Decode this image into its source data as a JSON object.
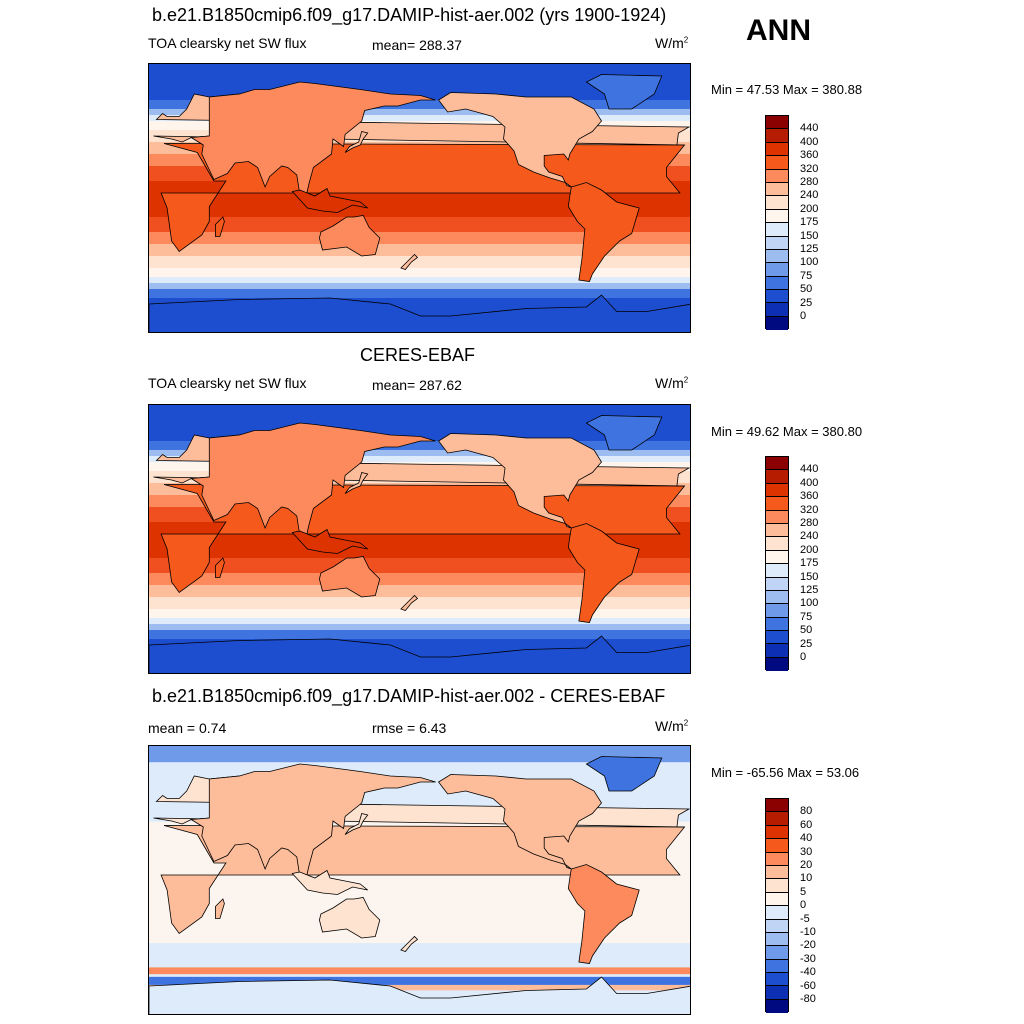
{
  "season": "ANN",
  "panels": [
    {
      "title": "b.e21.B1850cmip6.f09_g17.DAMIP-hist-aer.002 (yrs 1900-1924)",
      "variable": "TOA clearsky net SW flux",
      "stat1": "mean= 288.37",
      "stat2": "",
      "units": "W/m",
      "units_sup": "2",
      "minmax": "Min =  47.53 Max = 380.88",
      "kind": "abs"
    },
    {
      "title": "CERES-EBAF",
      "variable": "TOA clearsky net SW flux",
      "stat1": "mean= 287.62",
      "stat2": "",
      "units": "W/m",
      "units_sup": "2",
      "minmax": "Min =  49.62 Max = 380.80",
      "kind": "abs"
    },
    {
      "title": "b.e21.B1850cmip6.f09_g17.DAMIP-hist-aer.002 - CERES-EBAF",
      "variable": "",
      "stat1": "mean =   0.74",
      "stat2": "rmse =   6.43",
      "units": "W/m",
      "units_sup": "2",
      "minmax": "Min = -65.56 Max =  53.06",
      "kind": "diff"
    }
  ],
  "colorbars": {
    "abs": {
      "labels": [
        "440",
        "400",
        "360",
        "320",
        "280",
        "240",
        "200",
        "175",
        "150",
        "125",
        "100",
        "75",
        "50",
        "25",
        "0"
      ],
      "colors": [
        "#8b0000",
        "#b51c00",
        "#dc3300",
        "#f55a1c",
        "#fc8a5c",
        "#fdbc9a",
        "#fde3d0",
        "#fff5ec",
        "#deebfa",
        "#c0d5f5",
        "#9dbcf0",
        "#6f9ae9",
        "#3f74e0",
        "#1e4ed0",
        "#0d2fb3",
        "#000a80"
      ]
    },
    "diff": {
      "labels": [
        "80",
        "60",
        "40",
        "30",
        "20",
        "10",
        "5",
        "0",
        "-5",
        "-10",
        "-20",
        "-30",
        "-40",
        "-60",
        "-80"
      ],
      "colors": [
        "#8b0000",
        "#b51c00",
        "#dc3300",
        "#f55a1c",
        "#fc8a5c",
        "#fdbc9a",
        "#fde3d0",
        "#fff5ec",
        "#deebfa",
        "#c0d5f5",
        "#9dbcf0",
        "#6f9ae9",
        "#3f74e0",
        "#1e4ed0",
        "#0d2fb3",
        "#000a80"
      ]
    }
  }
}
